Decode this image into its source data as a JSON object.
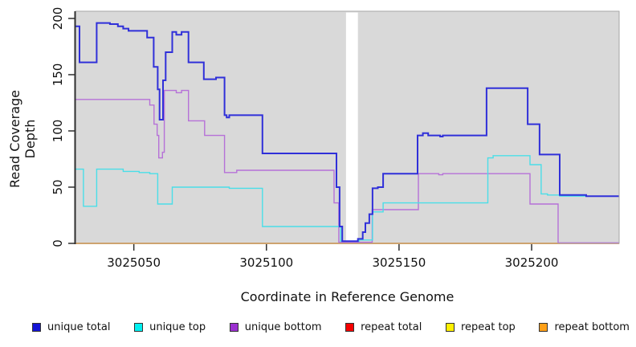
{
  "chart_data": {
    "type": "line",
    "title": "",
    "xlabel": "Coordinate in Reference Genome",
    "ylabel": "Read Coverage Depth",
    "xlim": [
      3025028,
      3025233
    ],
    "ylim": [
      0,
      206.4
    ],
    "x_ticks": [
      3025050,
      3025100,
      3025150,
      3025200
    ],
    "y_ticks": [
      0,
      50,
      100,
      150,
      200
    ],
    "grid": "off",
    "panel_bg": "#d9d9d9",
    "panel_border": "#a6a6a6",
    "axis_color": "#2f2f2f",
    "gap": {
      "from": 3025130,
      "to": 3025134.5,
      "color": "#ffffff"
    },
    "legend_position": "bottom",
    "draw_order": [
      "repeat top",
      "repeat total",
      "repeat bottom",
      "unique bottom",
      "unique top",
      "unique total"
    ],
    "series": [
      {
        "name": "unique total",
        "line_color": "#3030d9",
        "line_width": 2,
        "points": [
          [
            3025028,
            193
          ],
          [
            3025029.5,
            161
          ],
          [
            3025036,
            196
          ],
          [
            3025041,
            195
          ],
          [
            3025044,
            193
          ],
          [
            3025046,
            191
          ],
          [
            3025048,
            189
          ],
          [
            3025055,
            183
          ],
          [
            3025057.5,
            157
          ],
          [
            3025059,
            137
          ],
          [
            3025059.7,
            110
          ],
          [
            3025061,
            145
          ],
          [
            3025062,
            170
          ],
          [
            3025064.5,
            188
          ],
          [
            3025066,
            185.5
          ],
          [
            3025068,
            188
          ],
          [
            3025070.6,
            161
          ],
          [
            3025076.4,
            146
          ],
          [
            3025081,
            147.5
          ],
          [
            3025084.2,
            114
          ],
          [
            3025085,
            112
          ],
          [
            3025086,
            114
          ],
          [
            3025098.5,
            80
          ],
          [
            3025126.4,
            50
          ],
          [
            3025127.6,
            15
          ],
          [
            3025128.6,
            2
          ],
          [
            3025134.5,
            4
          ],
          [
            3025136.3,
            10
          ],
          [
            3025137.3,
            18
          ],
          [
            3025138.8,
            26
          ],
          [
            3025140,
            49
          ],
          [
            3025142,
            50
          ],
          [
            3025144,
            62
          ],
          [
            3025157,
            96
          ],
          [
            3025159,
            98
          ],
          [
            3025161,
            96
          ],
          [
            3025165.5,
            95
          ],
          [
            3025166.5,
            96
          ],
          [
            3025183,
            138
          ],
          [
            3025198.5,
            106
          ],
          [
            3025203,
            79
          ],
          [
            3025210.6,
            43
          ],
          [
            3025220.6,
            42
          ],
          [
            3025233,
            42
          ]
        ]
      },
      {
        "name": "unique top",
        "line_color": "#4adee8",
        "line_width": 1.4,
        "points": [
          [
            3025028,
            66
          ],
          [
            3025031,
            33
          ],
          [
            3025036,
            66
          ],
          [
            3025046,
            64
          ],
          [
            3025052,
            63
          ],
          [
            3025056,
            62
          ],
          [
            3025059,
            35
          ],
          [
            3025064.5,
            50
          ],
          [
            3025086,
            49
          ],
          [
            3025098.5,
            15
          ],
          [
            3025128,
            2
          ],
          [
            3025135,
            3
          ],
          [
            3025140,
            28
          ],
          [
            3025144,
            36
          ],
          [
            3025183.5,
            76
          ],
          [
            3025185.5,
            78
          ],
          [
            3025199.4,
            70
          ],
          [
            3025203.6,
            44
          ],
          [
            3025206,
            43
          ],
          [
            3025210.6,
            42
          ],
          [
            3025233,
            42
          ]
        ]
      },
      {
        "name": "unique bottom",
        "line_color": "#b671d8",
        "line_width": 1.4,
        "points": [
          [
            3025028,
            128
          ],
          [
            3025056,
            123
          ],
          [
            3025057.6,
            106
          ],
          [
            3025058.8,
            96
          ],
          [
            3025059.4,
            76
          ],
          [
            3025060.8,
            81
          ],
          [
            3025061.5,
            136
          ],
          [
            3025066,
            134
          ],
          [
            3025068,
            136
          ],
          [
            3025070.6,
            109
          ],
          [
            3025076.7,
            96
          ],
          [
            3025084.2,
            63
          ],
          [
            3025088.8,
            65
          ],
          [
            3025125.5,
            36
          ],
          [
            3025127.3,
            1
          ],
          [
            3025139.9,
            30
          ],
          [
            3025157.3,
            62
          ],
          [
            3025165,
            61
          ],
          [
            3025166.5,
            62
          ],
          [
            3025199.4,
            35
          ],
          [
            3025210,
            0.5
          ],
          [
            3025233,
            0.5
          ]
        ]
      },
      {
        "name": "repeat total",
        "line_color": "#d9536f",
        "line_width": 1.6,
        "points": [
          [
            3025028,
            0
          ],
          [
            3025233,
            0
          ]
        ]
      },
      {
        "name": "repeat top",
        "line_color": "#ffe800",
        "line_width": 1.4,
        "points": [
          [
            3025028,
            0
          ],
          [
            3025233,
            0
          ]
        ]
      },
      {
        "name": "repeat bottom",
        "line_color": "#ffa400",
        "line_width": 1.6,
        "points": [
          [
            3025028,
            0
          ],
          [
            3025210.6,
            0
          ]
        ]
      }
    ],
    "legend": [
      {
        "label": "unique total",
        "color": "#1414d6"
      },
      {
        "label": "unique top",
        "color": "#00f0f0"
      },
      {
        "label": "unique bottom",
        "color": "#9b30d0"
      },
      {
        "label": "repeat total",
        "color": "#f50000"
      },
      {
        "label": "repeat top",
        "color": "#fff000"
      },
      {
        "label": "repeat bottom",
        "color": "#ffa018"
      }
    ]
  }
}
